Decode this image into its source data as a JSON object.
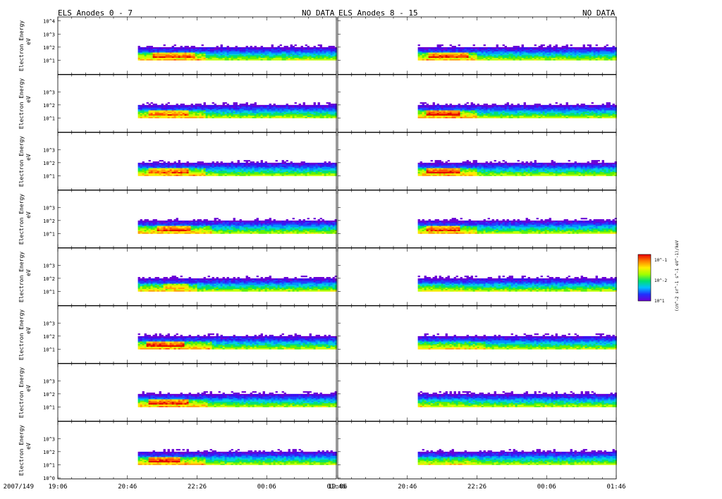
{
  "chart_data": {
    "type": "heatmap",
    "title_left": "ELS Anodes 0 - 7",
    "title_right": "ELS Anodes 8 - 15",
    "no_data_left": "NO DATA",
    "no_data_right": "NO DATA",
    "ylabel_line1": "Electron Energy",
    "ylabel_line2": "eV",
    "x_date_prefix": "2007/149",
    "x_tick_labels": [
      "19:06",
      "20:46",
      "22:26",
      "00:06",
      "01:46"
    ],
    "x_range_minutes": [
      0,
      400
    ],
    "y_ticks_log": [
      0,
      1,
      2,
      3,
      4
    ],
    "y_tick_labels": [
      "10^0",
      "10^1",
      "10^2",
      "10^3",
      "10^4"
    ],
    "columns": [
      {
        "name": "anodes-0-7",
        "data_start_minute": 115,
        "data_end_minute": 400,
        "panels": [
          {
            "anode": 0,
            "warm_band": [
              110,
              210
            ],
            "peak": [
              135,
              195
            ],
            "strength": 0.85
          },
          {
            "anode": 1,
            "warm_band": [
              110,
              210
            ],
            "peak": [
              130,
              185
            ],
            "strength": 0.75
          },
          {
            "anode": 2,
            "warm_band": [
              110,
              210
            ],
            "peak": [
              130,
              185
            ],
            "strength": 0.8
          },
          {
            "anode": 3,
            "warm_band": [
              110,
              220
            ],
            "peak": [
              140,
              190
            ],
            "strength": 0.85
          },
          {
            "anode": 4,
            "warm_band": [
              100,
              200
            ],
            "peak": [
              150,
              185
            ],
            "strength": 0.55
          },
          {
            "anode": 5,
            "warm_band": [
              110,
              220
            ],
            "peak": [
              125,
              180
            ],
            "strength": 0.95
          },
          {
            "anode": 6,
            "warm_band": [
              110,
              215
            ],
            "peak": [
              130,
              185
            ],
            "strength": 0.9
          },
          {
            "anode": 7,
            "warm_band": [
              110,
              210
            ],
            "peak": [
              130,
              175
            ],
            "strength": 0.95
          }
        ]
      },
      {
        "name": "anodes-8-15",
        "data_start_minute": 115,
        "data_end_minute": 400,
        "panels": [
          {
            "anode": 8,
            "warm_band": [
              110,
              200
            ],
            "peak": [
              130,
              185
            ],
            "strength": 0.85
          },
          {
            "anode": 9,
            "warm_band": [
              110,
              200
            ],
            "peak": [
              125,
              175
            ],
            "strength": 1.0
          },
          {
            "anode": 10,
            "warm_band": [
              110,
              200
            ],
            "peak": [
              125,
              175
            ],
            "strength": 0.95
          },
          {
            "anode": 11,
            "warm_band": [
              110,
              200
            ],
            "peak": [
              125,
              175
            ],
            "strength": 0.85
          },
          {
            "anode": 12,
            "warm_band": [
              110,
              180
            ],
            "peak": [
              0,
              0
            ],
            "strength": 0.15
          },
          {
            "anode": 13,
            "warm_band": [
              110,
              210
            ],
            "peak": [
              0,
              0
            ],
            "strength": 0.55
          },
          {
            "anode": 14,
            "warm_band": [
              110,
              180
            ],
            "peak": [
              0,
              0
            ],
            "strength": 0.15
          },
          {
            "anode": 15,
            "warm_band": [
              110,
              200
            ],
            "peak": [
              0,
              0
            ],
            "strength": 0.35
          }
        ]
      }
    ],
    "colorbar": {
      "label": "(cm^-2 sr^-1 s^-1 eV^-1)/keV",
      "tick_labels": [
        "10^-1",
        "10^-2",
        "10^1"
      ],
      "colors": [
        "#6a00d6",
        "#2030ff",
        "#00c0ff",
        "#00e070",
        "#a0ff00",
        "#ffee00",
        "#ff8000",
        "#e80000"
      ]
    }
  }
}
